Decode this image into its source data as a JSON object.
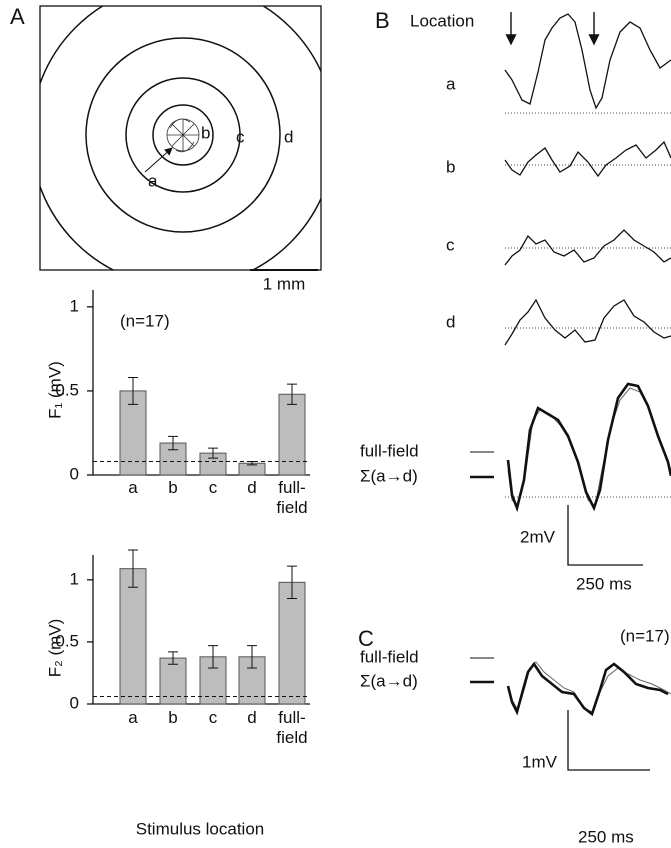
{
  "panels": {
    "A": "A",
    "B": "B",
    "C": "C"
  },
  "diagram": {
    "labels": [
      "a",
      "b",
      "c",
      "d"
    ],
    "scale_bar": "1 mm"
  },
  "chart_data": [
    {
      "type": "bar",
      "ylabel": "F₁ (mV)",
      "annotation": "(n=17)",
      "categories": [
        "a",
        "b",
        "c",
        "d",
        "full-field"
      ],
      "values": [
        0.5,
        0.19,
        0.13,
        0.07,
        0.48
      ],
      "errors": [
        0.08,
        0.04,
        0.03,
        0.01,
        0.06
      ],
      "baseline": 0.08,
      "color": "#bdbdbd",
      "ylim": [
        0,
        1.1
      ],
      "yticks": [
        0,
        0.5,
        1
      ]
    },
    {
      "type": "bar",
      "ylabel": "F₂ (mV)",
      "xlabel": "Stimulus location",
      "categories": [
        "a",
        "b",
        "c",
        "d",
        "full-field"
      ],
      "values": [
        1.09,
        0.37,
        0.38,
        0.38,
        0.98
      ],
      "errors": [
        0.15,
        0.05,
        0.09,
        0.09,
        0.13
      ],
      "baseline": 0.06,
      "color": "#bdbdbd",
      "ylim": [
        0,
        1.2
      ],
      "yticks": [
        0,
        0.5,
        1
      ]
    }
  ],
  "traces_B": {
    "header": "Location",
    "rows": [
      "a",
      "b",
      "c",
      "d"
    ],
    "legend": [
      "full-field",
      "Σ(a→d)"
    ],
    "scale_y": "2mV",
    "scale_x": "250 ms"
  },
  "traces_C": {
    "annotation": "(n=17)",
    "legend": [
      "full-field",
      "Σ(a→d)"
    ],
    "scale_y": "1mV",
    "scale_x": "250 ms"
  }
}
